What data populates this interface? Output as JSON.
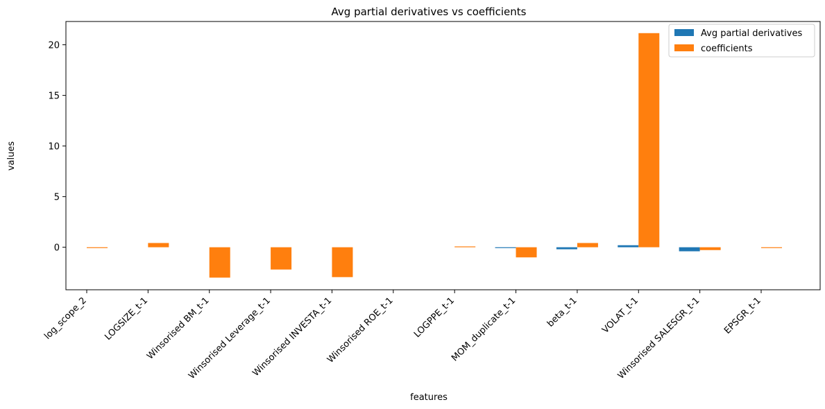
{
  "chart_data": {
    "type": "bar",
    "title": "Avg partial derivatives vs coefficients",
    "xlabel": "features",
    "ylabel": "values",
    "categories": [
      "log_scope_2",
      "LOGSIZE_t-1",
      "Winsorised BM_t-1",
      "Winsorised Leverage_t-1",
      "Winsorised INVESTA_t-1",
      "Winsorised ROE_t-1",
      "LOGPPE_t-1",
      "MOM_duplicate_t-1",
      "beta_t-1",
      "VOLAT_t-1",
      "Winsorised SALESGR_t-1",
      "EPSGR_t-1"
    ],
    "series": [
      {
        "name": "Avg partial derivatives",
        "color": "#1f77b4",
        "values": [
          0.0,
          0.0,
          0.0,
          0.0,
          0.0,
          0.0,
          0.0,
          -0.05,
          -0.2,
          0.2,
          -0.4,
          0.0
        ]
      },
      {
        "name": "coefficients",
        "color": "#ff7f0e",
        "values": [
          -0.05,
          0.42,
          -3.0,
          -2.2,
          -2.95,
          0.0,
          0.08,
          -1.0,
          0.42,
          21.15,
          -0.28,
          -0.05
        ]
      }
    ],
    "ylim": [
      -4.2,
      22.3
    ],
    "yticks": [
      0,
      5,
      10,
      15,
      20
    ],
    "legend_position": "top-right",
    "grid": false
  }
}
